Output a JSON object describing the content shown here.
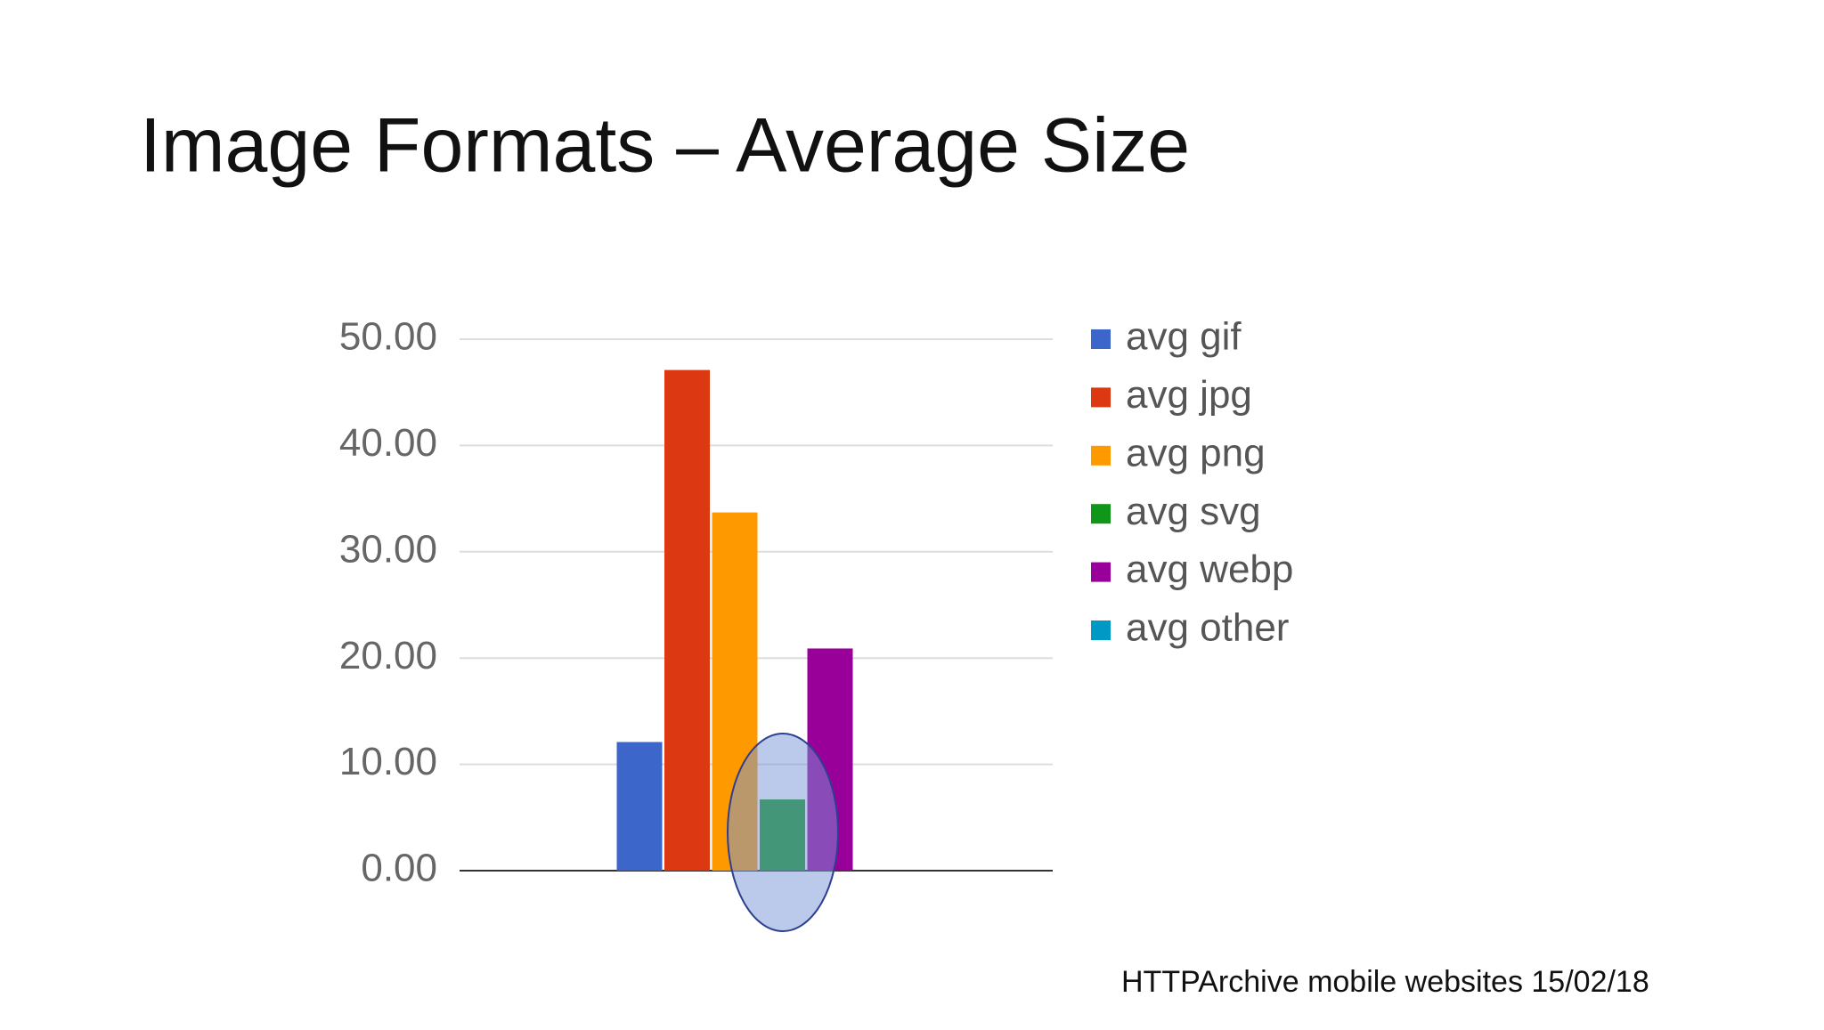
{
  "chart_data": {
    "type": "bar",
    "title": "Image Formats – Average Size",
    "note": "HTTPArchive mobile websites 15/02/18",
    "categories": [
      null
    ],
    "series": [
      {
        "name": "avg gif",
        "color": "#3c66c9",
        "values": [
          12.1
        ]
      },
      {
        "name": "avg jpg",
        "color": "#dc3912",
        "values": [
          47.1
        ]
      },
      {
        "name": "avg png",
        "color": "#ff9900",
        "values": [
          33.7
        ]
      },
      {
        "name": "avg svg",
        "color": "#109618",
        "values": [
          6.7
        ]
      },
      {
        "name": "avg webp",
        "color": "#990099",
        "values": [
          20.9
        ]
      },
      {
        "name": "avg other",
        "color": "#0099c6",
        "values": [
          0
        ]
      }
    ],
    "ylim": [
      0,
      50
    ],
    "yticks": [
      {
        "value": 0,
        "label": "0.00"
      },
      {
        "value": 10,
        "label": "10.00"
      },
      {
        "value": 20,
        "label": "20.00"
      },
      {
        "value": 30,
        "label": "30.00"
      },
      {
        "value": 40,
        "label": "40.00"
      },
      {
        "value": 50,
        "label": "50.00"
      }
    ],
    "grid": true,
    "legend": "right"
  }
}
